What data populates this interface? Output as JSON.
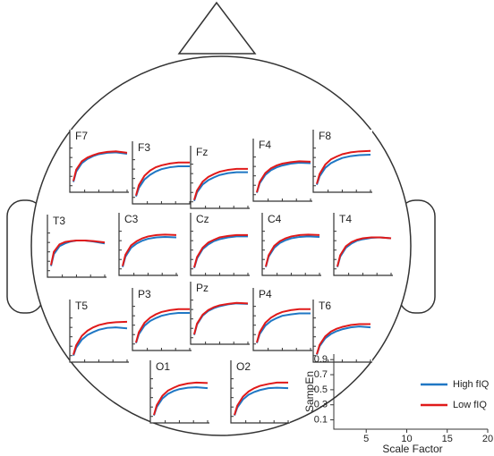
{
  "chart_data": {
    "type": "line",
    "xlabel": "Scale Factor",
    "ylabel": "SampEn",
    "x": [
      1,
      2,
      4,
      6,
      8,
      10,
      13,
      16,
      20
    ],
    "xlim": [
      1,
      20
    ],
    "ylim": [
      0,
      0.95
    ],
    "xticks": [
      5,
      10,
      15,
      20
    ],
    "yticks": [
      0.1,
      0.3,
      0.5,
      0.7,
      0.9
    ],
    "series": [
      {
        "name": "High fIQ",
        "color": "#1f77c4"
      },
      {
        "name": "Low fIQ",
        "color": "#e01a1a"
      }
    ],
    "panels": [
      {
        "title": "F7",
        "series": [
          {
            "values": [
              0.18,
              0.4,
              0.58,
              0.67,
              0.73,
              0.77,
              0.8,
              0.81,
              0.78
            ]
          },
          {
            "values": [
              0.2,
              0.44,
              0.62,
              0.7,
              0.75,
              0.79,
              0.82,
              0.83,
              0.8
            ]
          }
        ]
      },
      {
        "title": "F3",
        "series": [
          {
            "values": [
              0.12,
              0.3,
              0.48,
              0.58,
              0.65,
              0.7,
              0.74,
              0.76,
              0.76
            ]
          },
          {
            "values": [
              0.14,
              0.36,
              0.56,
              0.67,
              0.74,
              0.78,
              0.82,
              0.84,
              0.84
            ]
          }
        ]
      },
      {
        "title": "Fz",
        "series": [
          {
            "values": [
              0.12,
              0.3,
              0.47,
              0.56,
              0.62,
              0.67,
              0.71,
              0.73,
              0.73
            ]
          },
          {
            "values": [
              0.14,
              0.34,
              0.53,
              0.63,
              0.69,
              0.74,
              0.78,
              0.8,
              0.8
            ]
          }
        ]
      },
      {
        "title": "F4",
        "series": [
          {
            "values": [
              0.14,
              0.34,
              0.52,
              0.62,
              0.68,
              0.72,
              0.76,
              0.78,
              0.77
            ]
          },
          {
            "values": [
              0.15,
              0.37,
              0.56,
              0.66,
              0.72,
              0.76,
              0.79,
              0.81,
              0.8
            ]
          }
        ]
      },
      {
        "title": "F8",
        "series": [
          {
            "values": [
              0.12,
              0.3,
              0.48,
              0.58,
              0.64,
              0.69,
              0.73,
              0.75,
              0.76
            ]
          },
          {
            "values": [
              0.14,
              0.35,
              0.55,
              0.66,
              0.72,
              0.77,
              0.81,
              0.83,
              0.84
            ]
          }
        ]
      },
      {
        "title": "T3",
        "series": [
          {
            "values": [
              0.2,
              0.45,
              0.62,
              0.68,
              0.72,
              0.74,
              0.74,
              0.72,
              0.68
            ]
          },
          {
            "values": [
              0.22,
              0.5,
              0.66,
              0.71,
              0.73,
              0.74,
              0.74,
              0.73,
              0.7
            ]
          }
        ]
      },
      {
        "title": "C3",
        "series": [
          {
            "values": [
              0.14,
              0.36,
              0.55,
              0.64,
              0.7,
              0.74,
              0.77,
              0.78,
              0.77
            ]
          },
          {
            "values": [
              0.16,
              0.4,
              0.6,
              0.69,
              0.75,
              0.79,
              0.82,
              0.83,
              0.82
            ]
          }
        ]
      },
      {
        "title": "Cz",
        "series": [
          {
            "values": [
              0.12,
              0.32,
              0.52,
              0.62,
              0.69,
              0.73,
              0.77,
              0.79,
              0.79
            ]
          },
          {
            "values": [
              0.13,
              0.35,
              0.55,
              0.66,
              0.72,
              0.77,
              0.8,
              0.82,
              0.82
            ]
          }
        ]
      },
      {
        "title": "C4",
        "series": [
          {
            "values": [
              0.14,
              0.36,
              0.55,
              0.65,
              0.71,
              0.75,
              0.78,
              0.79,
              0.78
            ]
          },
          {
            "values": [
              0.15,
              0.39,
              0.59,
              0.69,
              0.75,
              0.79,
              0.82,
              0.83,
              0.82
            ]
          }
        ]
      },
      {
        "title": "T4",
        "series": [
          {
            "values": [
              0.14,
              0.36,
              0.55,
              0.64,
              0.7,
              0.73,
              0.76,
              0.77,
              0.75
            ]
          },
          {
            "values": [
              0.15,
              0.39,
              0.58,
              0.67,
              0.72,
              0.75,
              0.77,
              0.77,
              0.75
            ]
          }
        ]
      },
      {
        "title": "T5",
        "series": [
          {
            "values": [
              0.1,
              0.27,
              0.44,
              0.54,
              0.6,
              0.65,
              0.69,
              0.7,
              0.68
            ]
          },
          {
            "values": [
              0.12,
              0.32,
              0.52,
              0.63,
              0.7,
              0.75,
              0.79,
              0.81,
              0.82
            ]
          }
        ]
      },
      {
        "title": "P3",
        "series": [
          {
            "values": [
              0.12,
              0.31,
              0.49,
              0.59,
              0.65,
              0.7,
              0.74,
              0.76,
              0.76
            ]
          },
          {
            "values": [
              0.13,
              0.35,
              0.55,
              0.66,
              0.73,
              0.78,
              0.82,
              0.84,
              0.84
            ]
          }
        ]
      },
      {
        "title": "Pz",
        "series": [
          {
            "values": [
              0.16,
              0.38,
              0.57,
              0.67,
              0.73,
              0.77,
              0.81,
              0.83,
              0.82
            ]
          },
          {
            "values": [
              0.17,
              0.4,
              0.59,
              0.69,
              0.75,
              0.79,
              0.82,
              0.84,
              0.83
            ]
          }
        ]
      },
      {
        "title": "P4",
        "series": [
          {
            "values": [
              0.12,
              0.31,
              0.49,
              0.59,
              0.65,
              0.7,
              0.73,
              0.75,
              0.75
            ]
          },
          {
            "values": [
              0.13,
              0.35,
              0.55,
              0.66,
              0.73,
              0.78,
              0.82,
              0.84,
              0.84
            ]
          }
        ]
      },
      {
        "title": "T6",
        "series": [
          {
            "values": [
              0.12,
              0.3,
              0.47,
              0.56,
              0.62,
              0.66,
              0.7,
              0.72,
              0.7
            ]
          },
          {
            "values": [
              0.13,
              0.33,
              0.51,
              0.61,
              0.67,
              0.71,
              0.75,
              0.77,
              0.77
            ]
          }
        ]
      },
      {
        "title": "O1",
        "series": [
          {
            "values": [
              0.12,
              0.3,
              0.48,
              0.58,
              0.64,
              0.68,
              0.71,
              0.72,
              0.7
            ]
          },
          {
            "values": [
              0.13,
              0.34,
              0.54,
              0.65,
              0.71,
              0.76,
              0.8,
              0.82,
              0.81
            ]
          }
        ]
      },
      {
        "title": "O2",
        "series": [
          {
            "values": [
              0.12,
              0.29,
              0.46,
              0.56,
              0.62,
              0.66,
              0.7,
              0.71,
              0.7
            ]
          },
          {
            "values": [
              0.13,
              0.33,
              0.52,
              0.63,
              0.7,
              0.75,
              0.79,
              0.82,
              0.82
            ]
          }
        ]
      }
    ]
  }
}
